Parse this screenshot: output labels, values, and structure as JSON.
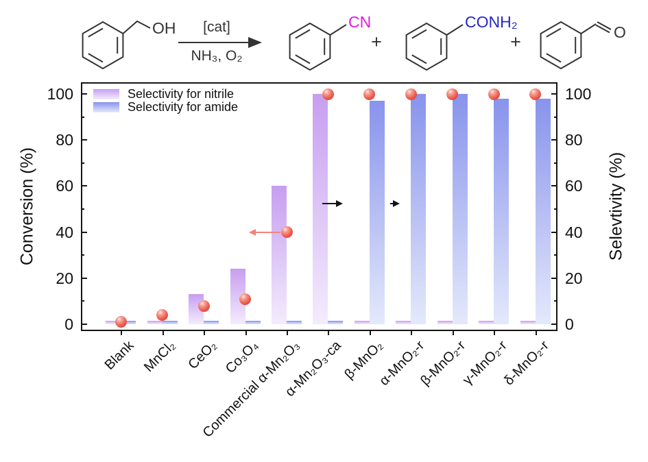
{
  "scheme": {
    "reactant_label": "OH",
    "catalyst": "[cat]",
    "conditions": "NH₃, O₂",
    "product1_label": "CN",
    "product1_color": "#e318e3",
    "plus1": "+",
    "product2_label": "CONH₂",
    "product2_color": "#2626cd",
    "plus2": "+",
    "product3_label": "O"
  },
  "chart_data": {
    "type": "bar",
    "title": "",
    "categories": [
      "Blank",
      "MnCl₂",
      "CeO₂",
      "Co₃O₄",
      "Commercial α-Mn₂O₃",
      "α-Mn₂O₃-ca",
      "β-MnO₂",
      "α-MnO₂-r",
      "β-MnO₂-r",
      "γ-MnO₂-r",
      "δ-MnO₂-r"
    ],
    "series": [
      {
        "name": "Selectivity for nitrile",
        "type": "bar",
        "axis": "right",
        "values": [
          1.5,
          1.5,
          13,
          24,
          60,
          100,
          1.5,
          1.5,
          1.5,
          1.5,
          1.5
        ],
        "color_top": "#c79ef0",
        "color_bottom": "#f3ecfd"
      },
      {
        "name": "Selectivity for amide",
        "type": "bar",
        "axis": "right",
        "values": [
          1.5,
          1.5,
          1.5,
          1.5,
          1.5,
          1.5,
          97,
          100,
          100,
          98,
          98
        ],
        "color_top": "#8893ec",
        "color_bottom": "#e4e9fb"
      },
      {
        "name": "Conversion",
        "type": "scatter",
        "axis": "left",
        "values": [
          1,
          4,
          8,
          11,
          40,
          100,
          100,
          100,
          100,
          100,
          100
        ],
        "marker": "sphere",
        "marker_color": "#ec5a4c"
      }
    ],
    "ylabel_left": "Conversion (%)",
    "ylabel_right": "Selevtivity (%)",
    "yticks": [
      0,
      20,
      40,
      60,
      80,
      100
    ],
    "yticks_minor": [
      10,
      30,
      50,
      70,
      90
    ],
    "ylim": [
      0,
      100
    ],
    "grid": false,
    "legend_position": "top-left",
    "annotations": [
      {
        "type": "arrow",
        "direction": "left",
        "color": "#f0837b",
        "category_index": 4,
        "y": 40,
        "size": "normal"
      },
      {
        "type": "arrow",
        "direction": "right",
        "color": "#141414",
        "category_index": 5,
        "y": 52.5,
        "size": "normal"
      },
      {
        "type": "arrow",
        "direction": "right",
        "color": "#141414",
        "category_index": 7,
        "y": 52.5,
        "size": "small"
      }
    ]
  }
}
